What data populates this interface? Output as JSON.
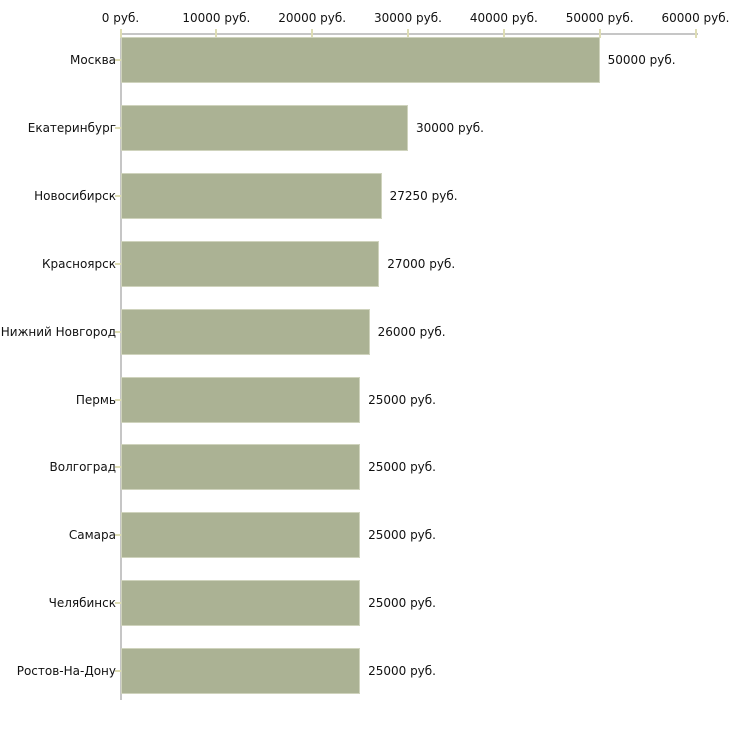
{
  "chart_data": {
    "type": "bar",
    "orientation": "horizontal",
    "categories": [
      "Москва",
      "Екатеринбург",
      "Новосибирск",
      "Красноярск",
      "Нижний Новгород",
      "Пермь",
      "Волгоград",
      "Самара",
      "Челябинск",
      "Ростов-На-Дону"
    ],
    "values": [
      50000,
      30000,
      27250,
      27000,
      26000,
      25000,
      25000,
      25000,
      25000,
      25000
    ],
    "value_labels": [
      "50000 руб.",
      "30000 руб.",
      "27250 руб.",
      "27000 руб.",
      "26000 руб.",
      "25000 руб.",
      "25000 руб.",
      "25000 руб.",
      "25000 руб.",
      "25000 руб."
    ],
    "x_ticks": [
      "0 руб.",
      "10000 руб.",
      "20000 руб.",
      "30000 руб.",
      "40000 руб.",
      "50000 руб.",
      "60000 руб."
    ],
    "xlim": [
      0,
      60000
    ],
    "grid": "off",
    "legend": "none",
    "colors": {
      "bar_fill": "#abb294",
      "bar_border": "#cfd3bd",
      "axis_line": "#c6c6c6",
      "tick_mark": "#deddb4",
      "text": "#111111"
    }
  }
}
